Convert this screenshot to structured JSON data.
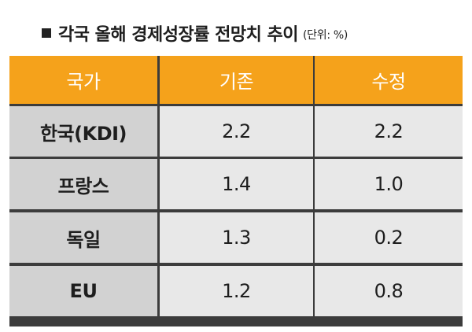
{
  "title": {
    "marker": "■",
    "text": "각국 올해 경제성장률 전망치 추이",
    "unit": "(단위: %)"
  },
  "colors": {
    "header_bg": "#f5a21b",
    "header_text": "#ffffff",
    "row_label_bg": "#d2d2d2",
    "value_bg": "#e8e8e8",
    "grid_line": "#3c3c3c"
  },
  "chart_data": {
    "type": "table",
    "title": "각국 올해 경제성장률 전망치 추이",
    "unit": "(단위: %)",
    "header_corner": "국가",
    "columns": [
      "기존",
      "수정"
    ],
    "rows": [
      {
        "label": "한국(KDI)",
        "values": [
          "2.2",
          "2.2"
        ]
      },
      {
        "label": "프랑스",
        "values": [
          "1.4",
          "1.0"
        ]
      },
      {
        "label": "독일",
        "values": [
          "1.3",
          "0.2"
        ]
      },
      {
        "label": "EU",
        "values": [
          "1.2",
          "0.8"
        ]
      }
    ]
  }
}
